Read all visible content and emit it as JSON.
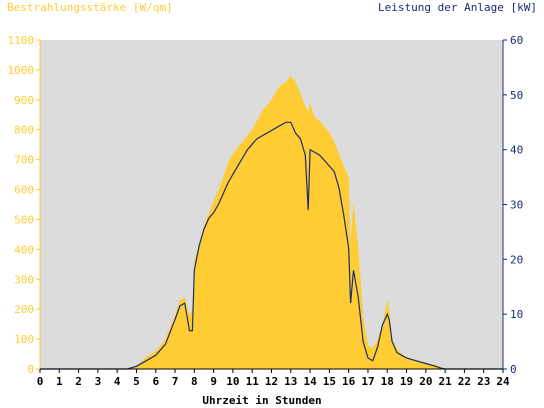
{
  "chart_data": {
    "type": "area",
    "title": "",
    "left_axis_label": "Bestrahlungsstärke [W/qm]",
    "right_axis_label": "Leistung der Anlage [kW]",
    "xlabel": "Uhrzeit in Stunden",
    "xlim": [
      0,
      24
    ],
    "x_ticks": [
      "0",
      "1",
      "2",
      "3",
      "4",
      "5",
      "6",
      "7",
      "8",
      "9",
      "10",
      "11",
      "12",
      "13",
      "14",
      "15",
      "16",
      "17",
      "18",
      "19",
      "20",
      "21",
      "22",
      "23",
      "24"
    ],
    "ylim_left": [
      0,
      1100
    ],
    "y_ticks_left": [
      "0",
      "100",
      "200",
      "300",
      "400",
      "500",
      "600",
      "700",
      "800",
      "900",
      "1000",
      "1100"
    ],
    "ylim_right": [
      0,
      60
    ],
    "y_ticks_right": [
      "0",
      "10",
      "20",
      "30",
      "40",
      "50",
      "60"
    ],
    "grid": false,
    "colors": {
      "plot_background": "#dcdcdc",
      "irradiance_fill": "#ffcc33",
      "irradiance_axis": "#ffcc33",
      "power_line": "#1a2e6e",
      "power_axis": "#1a2e6e"
    },
    "series": [
      {
        "axis": "left",
        "style": "filled-area",
        "x": [
          0,
          4.5,
          5.0,
          5.5,
          6.0,
          6.5,
          7.0,
          7.25,
          7.5,
          7.75,
          7.9,
          8.0,
          8.25,
          8.5,
          8.75,
          9.0,
          9.25,
          9.5,
          9.75,
          10.0,
          10.25,
          10.5,
          10.75,
          11.0,
          11.25,
          11.5,
          11.75,
          12.0,
          12.25,
          12.5,
          12.75,
          13.0,
          13.25,
          13.5,
          13.75,
          13.9,
          14.0,
          14.25,
          14.5,
          14.75,
          15.0,
          15.25,
          15.5,
          15.75,
          16.0,
          16.1,
          16.25,
          16.5,
          16.75,
          17.0,
          17.25,
          17.5,
          17.75,
          18.0,
          18.1,
          18.25,
          18.5,
          18.75,
          19.0,
          19.5,
          20.0,
          20.5,
          20.75,
          21.0,
          24
        ],
        "values": [
          0,
          0,
          10,
          40,
          60,
          100,
          180,
          230,
          240,
          180,
          200,
          360,
          420,
          480,
          520,
          560,
          600,
          640,
          690,
          720,
          740,
          760,
          780,
          800,
          830,
          860,
          880,
          900,
          930,
          950,
          960,
          980,
          960,
          920,
          880,
          860,
          890,
          840,
          830,
          810,
          790,
          760,
          720,
          680,
          640,
          420,
          560,
          400,
          180,
          80,
          70,
          100,
          150,
          230,
          200,
          100,
          70,
          50,
          40,
          30,
          20,
          15,
          8,
          0,
          0
        ]
      },
      {
        "axis": "right",
        "style": "line",
        "x": [
          0,
          4.5,
          5.0,
          5.5,
          6.0,
          6.5,
          7.0,
          7.25,
          7.5,
          7.75,
          7.9,
          8.0,
          8.25,
          8.5,
          8.75,
          9.0,
          9.25,
          9.5,
          9.75,
          10.0,
          10.25,
          10.5,
          10.75,
          11.0,
          11.25,
          11.5,
          11.75,
          12.0,
          12.25,
          12.5,
          12.75,
          13.0,
          13.25,
          13.5,
          13.75,
          13.9,
          14.0,
          14.25,
          14.5,
          14.75,
          15.0,
          15.25,
          15.5,
          15.75,
          16.0,
          16.1,
          16.25,
          16.5,
          16.75,
          17.0,
          17.25,
          17.5,
          17.75,
          18.0,
          18.1,
          18.25,
          18.5,
          18.75,
          19.0,
          19.5,
          20.0,
          20.5,
          20.75,
          21.0,
          24
        ],
        "values": [
          0,
          0,
          0.5,
          1.5,
          2.5,
          4.5,
          9,
          11.5,
          12,
          7,
          7,
          18,
          22.5,
          25.5,
          27.5,
          28.5,
          30,
          32,
          34,
          35.5,
          37,
          38.5,
          40,
          41,
          42,
          42.5,
          43,
          43.5,
          44,
          44.5,
          45,
          45,
          43,
          42,
          39,
          29,
          40,
          39.5,
          39,
          38,
          37,
          36,
          33,
          28,
          22,
          12,
          18,
          13,
          5,
          2,
          1.5,
          4,
          8,
          10,
          9,
          5,
          3,
          2.5,
          2,
          1.5,
          1,
          0.5,
          0.2,
          0,
          0
        ]
      }
    ]
  }
}
